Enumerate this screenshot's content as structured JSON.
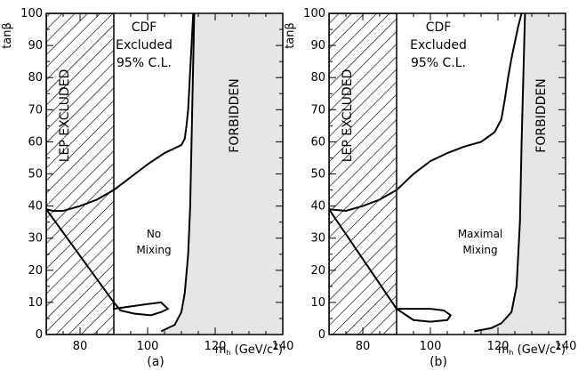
{
  "chart_data": [
    {
      "type": "area",
      "panel_label": "(a)",
      "ylabel": "tanβ",
      "xlabel": "m_h (GeV/c²)",
      "xlim": [
        70,
        140
      ],
      "ylim": [
        0,
        100
      ],
      "xticks": [
        80,
        100,
        120,
        140
      ],
      "yticks": [
        0,
        10,
        20,
        30,
        40,
        50,
        60,
        70,
        80,
        90,
        100
      ],
      "regions": {
        "lep_excluded": {
          "label": "LEP EXCLUDED",
          "x_max": 90,
          "lower_x": [
            70,
            75,
            80,
            85,
            90
          ],
          "lower_y": [
            1,
            1.5,
            2.5,
            4,
            5.5
          ]
        },
        "forbidden": {
          "label": "FORBIDDEN",
          "x": [
            104,
            108,
            110,
            111,
            112,
            112.6,
            113,
            113.4,
            113.8
          ],
          "y": [
            1,
            3,
            7,
            13,
            25,
            40,
            60,
            80,
            100
          ]
        },
        "cdf_excluded": {
          "label_lines": [
            "CDF",
            "Excluded",
            "95% C.L."
          ]
        },
        "mixing": {
          "label_lines": [
            "No",
            "Mixing"
          ]
        }
      },
      "cdf_boundary": {
        "x": [
          90,
          90,
          100,
          104,
          106,
          104,
          101,
          96,
          92,
          90,
          70,
          72,
          75,
          80,
          85,
          90,
          95,
          100,
          105,
          110,
          111,
          111.5,
          112,
          112.5,
          113,
          113.5
        ],
        "y": [
          10,
          8,
          9.5,
          10,
          8,
          7,
          6,
          6.5,
          7.5,
          10,
          39,
          38.5,
          38.5,
          40,
          42,
          45,
          49,
          53,
          56.5,
          59,
          61,
          65,
          70,
          80,
          90,
          100
        ]
      }
    },
    {
      "type": "area",
      "panel_label": "(b)",
      "ylabel": "tanβ",
      "xlabel": "m_h (GeV/c²)",
      "xlim": [
        70,
        140
      ],
      "ylim": [
        0,
        100
      ],
      "xticks": [
        80,
        100,
        120,
        140
      ],
      "yticks": [
        0,
        10,
        20,
        30,
        40,
        50,
        60,
        70,
        80,
        90,
        100
      ],
      "regions": {
        "lep_excluded": {
          "label": "LEP EXCLUDED",
          "x_max": 90,
          "lower_x": [
            70,
            75,
            80,
            85,
            90
          ],
          "lower_y": [
            1,
            1.5,
            2.5,
            4,
            5.5
          ]
        },
        "forbidden": {
          "label": "FORBIDDEN",
          "x": [
            113,
            118,
            121,
            124,
            125.5,
            126.5,
            127,
            127.5,
            128
          ],
          "y": [
            1,
            2,
            3.5,
            7,
            15,
            35,
            60,
            80,
            100
          ]
        },
        "cdf_excluded": {
          "label_lines": [
            "CDF",
            "Excluded",
            "95% C.L."
          ]
        },
        "mixing": {
          "label_lines": [
            "Maximal",
            "Mixing"
          ]
        }
      },
      "cdf_boundary": {
        "x": [
          90,
          100,
          104,
          106,
          105,
          100,
          95,
          90,
          70,
          75,
          80,
          85,
          90,
          95,
          100,
          105,
          110,
          115,
          119,
          121,
          122,
          123,
          124,
          125,
          126,
          127
        ],
        "y": [
          8,
          8,
          7.5,
          6,
          4.5,
          4,
          4.5,
          8,
          39,
          38.5,
          40,
          42,
          45,
          50,
          54,
          56.5,
          58.5,
          60,
          63,
          67,
          73,
          80,
          86,
          91,
          96,
          100
        ]
      }
    }
  ]
}
